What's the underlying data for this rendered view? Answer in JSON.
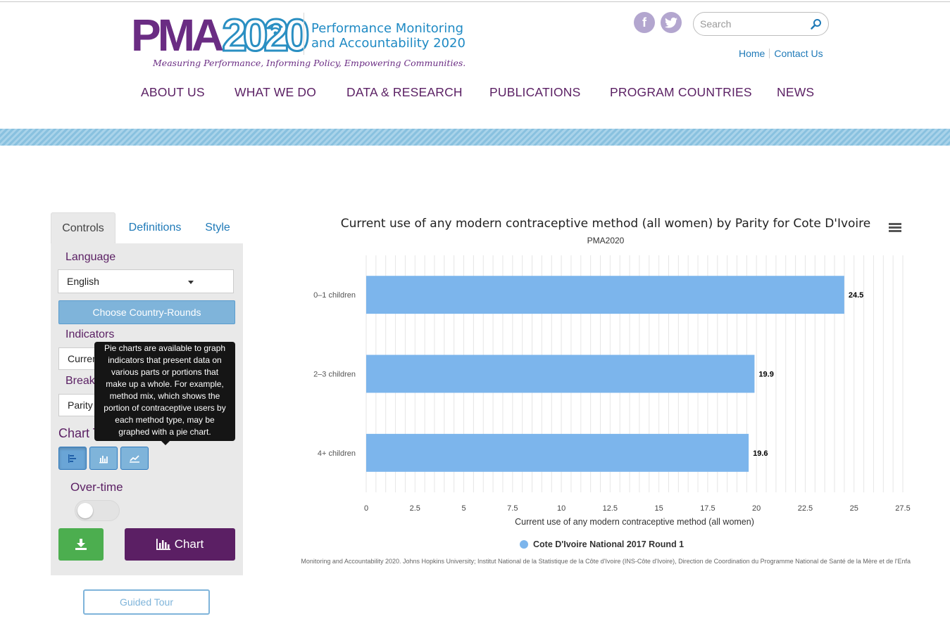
{
  "brand": {
    "logo_text": "PMA2020",
    "title_line1": "Performance Monitoring",
    "title_line2": "and Accountability 2020",
    "tagline": "Measuring Performance, Informing Policy, Empowering Communities."
  },
  "header": {
    "search_placeholder": "Search",
    "links": [
      "Home",
      "Contact Us"
    ],
    "social": [
      "facebook-icon",
      "twitter-icon"
    ]
  },
  "nav": [
    "ABOUT US",
    "WHAT WE DO",
    "DATA & RESEARCH",
    "PUBLICATIONS",
    "PROGRAM COUNTRIES",
    "NEWS"
  ],
  "controls": {
    "tabs": [
      "Controls",
      "Definitions",
      "Style"
    ],
    "language_label": "Language",
    "language_value": "English",
    "choose_button": "Choose Country-Rounds",
    "indicators_label": "Indicators",
    "indicator_value": "Curren",
    "breakdown_label": "Break",
    "breakdown_value": "Parity",
    "chart_type_label": "Chart Type",
    "overtime_label": "Over-time",
    "chart_button": "Chart",
    "tour_button": "Guided Tour",
    "tooltip": "Pie charts are available to graph indicators that present data on various parts or portions that make up a whole. For example, method mix, which shows the portion of contraceptive users by each method type, may be graphed with a pie chart."
  },
  "colors": {
    "purple": "#5b1f64",
    "blue": "#1f7ab8",
    "bar": "#7cb5ec",
    "green": "#4cae4f"
  },
  "chart_data": {
    "type": "bar",
    "orientation": "horizontal",
    "title": "Current use of any modern contraceptive method (all women) by Parity for Cote D'Ivoire",
    "subtitle": "PMA2020",
    "categories": [
      "0–1 children",
      "2–3 children",
      "4+ children"
    ],
    "series": [
      {
        "name": "Cote D'Ivoire National 2017 Round 1",
        "values": [
          24.5,
          19.9,
          19.6
        ]
      }
    ],
    "xlabel": "Current use of any modern contraceptive method (all women)",
    "ylabel": "",
    "xlim": [
      0,
      27.5
    ],
    "ticks": [
      0,
      2.5,
      5,
      7.5,
      10,
      12.5,
      15,
      17.5,
      20,
      22.5,
      25,
      27.5
    ],
    "grid": true,
    "legend": "bottom",
    "credits": "Performance Monitoring and Accountability 2020. Johns Hopkins University; Institut National de la Statistique de la Côte d'Ivoire (INS-Côte d'Ivoire), Direction de Coordination du Programme National de Santé de la Mère et de l'Enfa"
  }
}
